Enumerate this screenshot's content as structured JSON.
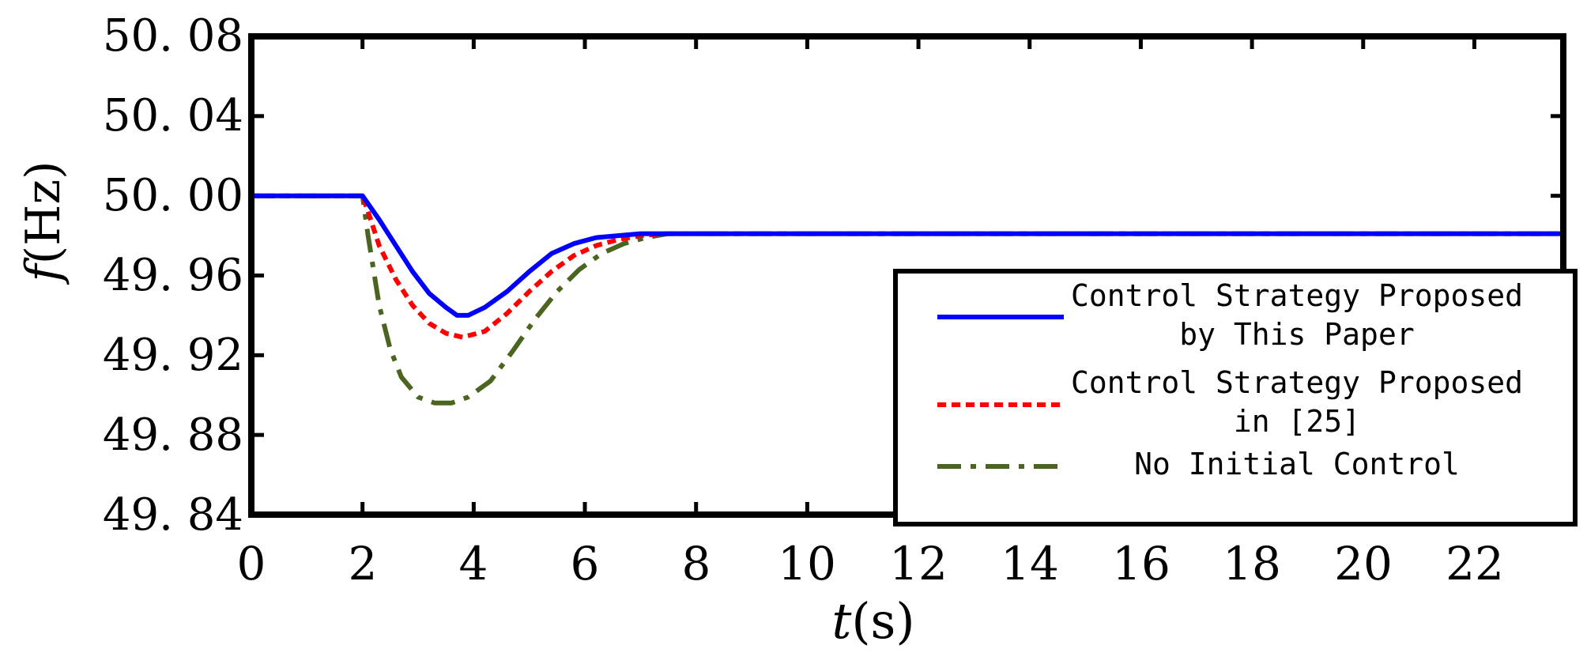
{
  "chart_data": {
    "type": "line",
    "xlabel_var": "t",
    "xlabel_unit": "(s)",
    "ylabel_var": "f",
    "ylabel_unit": "(Hz)",
    "xlim": [
      0,
      23.6
    ],
    "ylim": [
      49.84,
      50.08
    ],
    "xticks": [
      0,
      2,
      4,
      6,
      8,
      10,
      12,
      14,
      16,
      18,
      20,
      22
    ],
    "xtick_labels": [
      "0",
      "2",
      "4",
      "6",
      "8",
      "10",
      "12",
      "14",
      "16",
      "18",
      "20",
      "22"
    ],
    "yticks": [
      49.84,
      49.88,
      49.92,
      49.96,
      50.0,
      50.04,
      50.08
    ],
    "ytick_labels": [
      "49. 84",
      "49. 88",
      "49. 92",
      "49. 96",
      "50. 00",
      "50. 04",
      "50. 08"
    ],
    "legend_position": "lower-right",
    "series": [
      {
        "name": "Control Strategy Proposed by This Paper",
        "legend_lines": [
          "Control Strategy Proposed",
          "by This Paper"
        ],
        "color": "#0000ff",
        "style": "solid",
        "x": [
          0,
          2.0,
          2.3,
          2.6,
          2.9,
          3.2,
          3.5,
          3.7,
          3.9,
          4.2,
          4.6,
          5.0,
          5.4,
          5.8,
          6.2,
          6.6,
          7.0,
          7.5,
          8,
          10,
          15,
          20,
          23.6
        ],
        "y": [
          50.0,
          50.0,
          49.988,
          49.975,
          49.962,
          49.951,
          49.944,
          49.94,
          49.94,
          49.944,
          49.952,
          49.962,
          49.971,
          49.976,
          49.979,
          49.98,
          49.981,
          49.981,
          49.981,
          49.981,
          49.981,
          49.981,
          49.981
        ]
      },
      {
        "name": "Control Strategy Proposed in [25]",
        "legend_lines": [
          "Control Strategy Proposed",
          "in [25]"
        ],
        "color": "#ff0000",
        "style": "dotted",
        "x": [
          0,
          2.0,
          2.1,
          2.3,
          2.6,
          2.9,
          3.2,
          3.5,
          3.8,
          4.2,
          4.6,
          5.0,
          5.4,
          5.8,
          6.2,
          6.6,
          7.0,
          7.5,
          8,
          10,
          15,
          20,
          23.6
        ],
        "y": [
          50.0,
          50.0,
          49.992,
          49.975,
          49.958,
          49.945,
          49.936,
          49.931,
          49.929,
          49.932,
          49.941,
          49.952,
          49.962,
          49.97,
          49.975,
          49.978,
          49.98,
          49.981,
          49.981,
          49.981,
          49.981,
          49.981,
          49.981
        ]
      },
      {
        "name": "No Initial Control",
        "legend_lines": [
          "No Initial Control"
        ],
        "color": "#4b6420",
        "style": "dashdot",
        "x": [
          0,
          2.0,
          2.1,
          2.3,
          2.5,
          2.7,
          3.0,
          3.3,
          3.6,
          3.9,
          4.3,
          4.7,
          5.1,
          5.5,
          5.9,
          6.3,
          6.7,
          7.1,
          7.5,
          8,
          10,
          15,
          20,
          23.6
        ],
        "y": [
          50.0,
          50.0,
          49.98,
          49.945,
          49.923,
          49.909,
          49.899,
          49.896,
          49.896,
          49.899,
          49.907,
          49.922,
          49.938,
          49.952,
          49.963,
          49.971,
          49.976,
          49.979,
          49.981,
          49.981,
          49.981,
          49.981,
          49.981,
          49.981
        ]
      }
    ]
  }
}
